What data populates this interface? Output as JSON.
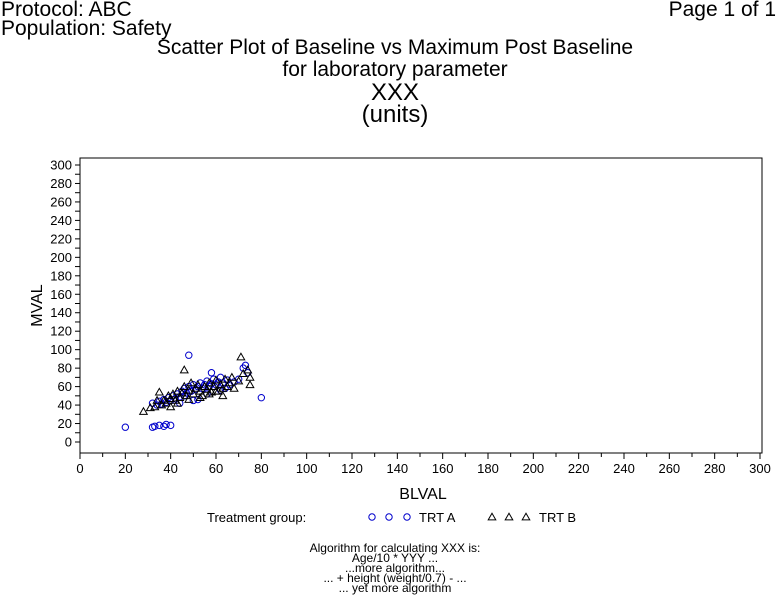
{
  "header": {
    "protocol": "Protocol: ABC",
    "population": "Population: Safety",
    "page": "Page 1 of 1"
  },
  "title_lines": [
    "Scatter Plot of Baseline vs Maximum Post Baseline",
    "for laboratory parameter",
    "XXX",
    "(units)"
  ],
  "legend": {
    "title": "Treatment group:"
  },
  "footnote": {
    "lines": [
      "Algorithm for calculating XXX is:",
      "Age/10 * YYY ...",
      "...more algorithm...",
      "... + height (weight/0.7) - ...",
      "... yet more algorithm"
    ]
  },
  "colors": {
    "trt_a": "#0000cc",
    "trt_b": "#000000"
  },
  "chart_data": {
    "type": "scatter",
    "xlabel": "BLVAL",
    "ylabel": "MVAL",
    "xlim": [
      0,
      300
    ],
    "ylim": [
      0,
      300
    ],
    "xticks": [
      0,
      20,
      40,
      60,
      80,
      100,
      120,
      140,
      160,
      180,
      200,
      220,
      240,
      260,
      280,
      300
    ],
    "yticks": [
      0,
      10,
      20,
      30,
      40,
      50,
      60,
      70,
      80,
      90,
      100,
      110,
      120,
      130,
      140,
      150,
      160,
      170,
      180,
      190,
      200,
      210,
      220,
      230,
      240,
      250,
      260,
      270,
      280,
      290,
      300
    ],
    "ytick_labels": [
      0,
      20,
      40,
      60,
      80,
      100,
      120,
      140,
      160,
      180,
      200,
      220,
      240,
      260,
      280,
      300
    ],
    "grid": false,
    "legend_position": "bottom",
    "series": [
      {
        "name": "TRT A",
        "marker": "circle",
        "points": [
          [
            20,
            16
          ],
          [
            32,
            16
          ],
          [
            33,
            17
          ],
          [
            35,
            18
          ],
          [
            37,
            17
          ],
          [
            38,
            19
          ],
          [
            40,
            18
          ],
          [
            32,
            42
          ],
          [
            34,
            40
          ],
          [
            35,
            44
          ],
          [
            36,
            41
          ],
          [
            37,
            46
          ],
          [
            38,
            43
          ],
          [
            39,
            48
          ],
          [
            40,
            45
          ],
          [
            41,
            50
          ],
          [
            42,
            47
          ],
          [
            43,
            52
          ],
          [
            44,
            49
          ],
          [
            45,
            55
          ],
          [
            46,
            50
          ],
          [
            46,
            58
          ],
          [
            47,
            53
          ],
          [
            48,
            94
          ],
          [
            48,
            60
          ],
          [
            49,
            55
          ],
          [
            50,
            62
          ],
          [
            50,
            45
          ],
          [
            51,
            57
          ],
          [
            52,
            60
          ],
          [
            53,
            64
          ],
          [
            54,
            58
          ],
          [
            55,
            62
          ],
          [
            56,
            66
          ],
          [
            57,
            60
          ],
          [
            58,
            75
          ],
          [
            58,
            63
          ],
          [
            59,
            68
          ],
          [
            60,
            62
          ],
          [
            61,
            65
          ],
          [
            62,
            70
          ],
          [
            63,
            64
          ],
          [
            64,
            58
          ],
          [
            65,
            67
          ],
          [
            66,
            62
          ],
          [
            68,
            65
          ],
          [
            70,
            68
          ],
          [
            72,
            80
          ],
          [
            73,
            83
          ],
          [
            74,
            75
          ],
          [
            80,
            48
          ],
          [
            44,
            42
          ],
          [
            52,
            46
          ],
          [
            56,
            52
          ],
          [
            62,
            56
          ]
        ]
      },
      {
        "name": "TRT B",
        "marker": "triangle",
        "points": [
          [
            28,
            33
          ],
          [
            31,
            37
          ],
          [
            33,
            38
          ],
          [
            34,
            45
          ],
          [
            35,
            54
          ],
          [
            36,
            40
          ],
          [
            37,
            45
          ],
          [
            38,
            42
          ],
          [
            39,
            50
          ],
          [
            40,
            47
          ],
          [
            40,
            38
          ],
          [
            41,
            52
          ],
          [
            42,
            45
          ],
          [
            43,
            55
          ],
          [
            44,
            48
          ],
          [
            45,
            53
          ],
          [
            46,
            60
          ],
          [
            46,
            78
          ],
          [
            47,
            50
          ],
          [
            48,
            56
          ],
          [
            49,
            64
          ],
          [
            50,
            52
          ],
          [
            51,
            58
          ],
          [
            52,
            62
          ],
          [
            53,
            55
          ],
          [
            54,
            50
          ],
          [
            55,
            60
          ],
          [
            56,
            57
          ],
          [
            57,
            64
          ],
          [
            58,
            54
          ],
          [
            59,
            60
          ],
          [
            60,
            67
          ],
          [
            61,
            55
          ],
          [
            62,
            62
          ],
          [
            63,
            58
          ],
          [
            64,
            68
          ],
          [
            65,
            60
          ],
          [
            66,
            64
          ],
          [
            67,
            70
          ],
          [
            68,
            58
          ],
          [
            70,
            66
          ],
          [
            71,
            92
          ],
          [
            72,
            74
          ],
          [
            74,
            78
          ],
          [
            75,
            62
          ],
          [
            75,
            70
          ],
          [
            43,
            42
          ],
          [
            48,
            46
          ],
          [
            53,
            48
          ],
          [
            57,
            52
          ],
          [
            60,
            55
          ],
          [
            63,
            50
          ]
        ]
      }
    ]
  }
}
